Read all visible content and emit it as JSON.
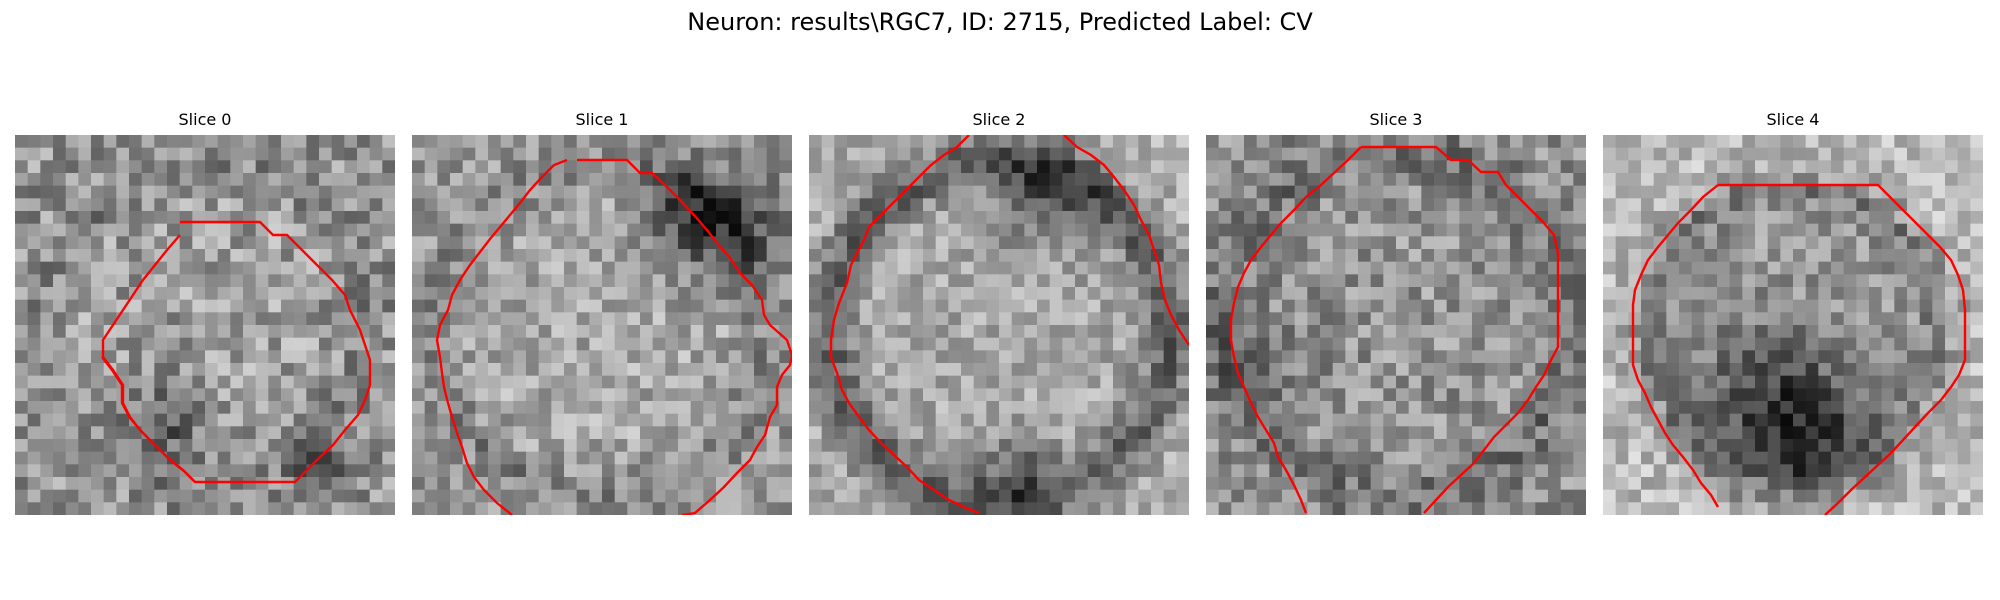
{
  "figure": {
    "title": "Neuron: results\\RGC7, ID: 2715, Predicted Label: CV"
  },
  "colors": {
    "contour": "#ff0000",
    "background": "#ffffff"
  },
  "panels": [
    {
      "title": "Slice 0"
    },
    {
      "title": "Slice 1"
    },
    {
      "title": "Slice 2"
    },
    {
      "title": "Slice 3"
    },
    {
      "title": "Slice 4"
    }
  ]
}
